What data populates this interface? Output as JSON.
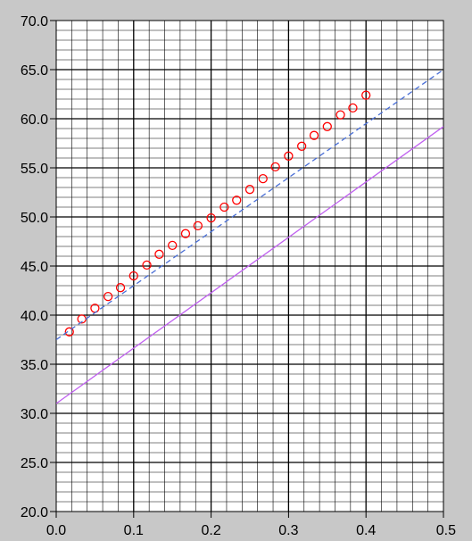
{
  "chart_data": {
    "type": "scatter",
    "x_ticks": [
      "0.0",
      "0.1",
      "0.2",
      "0.3",
      "0.4",
      "0.5"
    ],
    "y_ticks": [
      "20.0",
      "25.0",
      "30.0",
      "35.0",
      "40.0",
      "45.0",
      "50.0",
      "55.0",
      "60.0",
      "65.0",
      "70.0"
    ],
    "xlim": [
      0,
      0.5
    ],
    "ylim": [
      20,
      70
    ],
    "grid": true,
    "colors": {
      "background": "#c8c8c8",
      "plot_area": "#ffffff",
      "grid": "#000000",
      "markers": "#ff0000",
      "fit_line": "#4a6fd6",
      "offset_line": "#c060f0"
    },
    "series": [
      {
        "style": "markers",
        "x": [
          0.017,
          0.033,
          0.05,
          0.067,
          0.083,
          0.1,
          0.117,
          0.133,
          0.15,
          0.167,
          0.183,
          0.2,
          0.217,
          0.233,
          0.25,
          0.267,
          0.283,
          0.3,
          0.317,
          0.333,
          0.35,
          0.367,
          0.383,
          0.4
        ],
        "y": [
          38.3,
          39.6,
          40.7,
          41.9,
          42.8,
          44.0,
          45.1,
          46.2,
          47.1,
          48.3,
          49.1,
          49.9,
          51.0,
          51.7,
          52.8,
          53.9,
          55.1,
          56.2,
          57.2,
          58.3,
          59.2,
          60.4,
          61.1,
          62.4
        ]
      },
      {
        "style": "dashed-line",
        "x": [
          0.0,
          0.5
        ],
        "y": [
          37.5,
          65.0
        ]
      },
      {
        "style": "solid-line",
        "x": [
          0.0,
          0.5
        ],
        "y": [
          31.0,
          59.2
        ]
      }
    ]
  }
}
